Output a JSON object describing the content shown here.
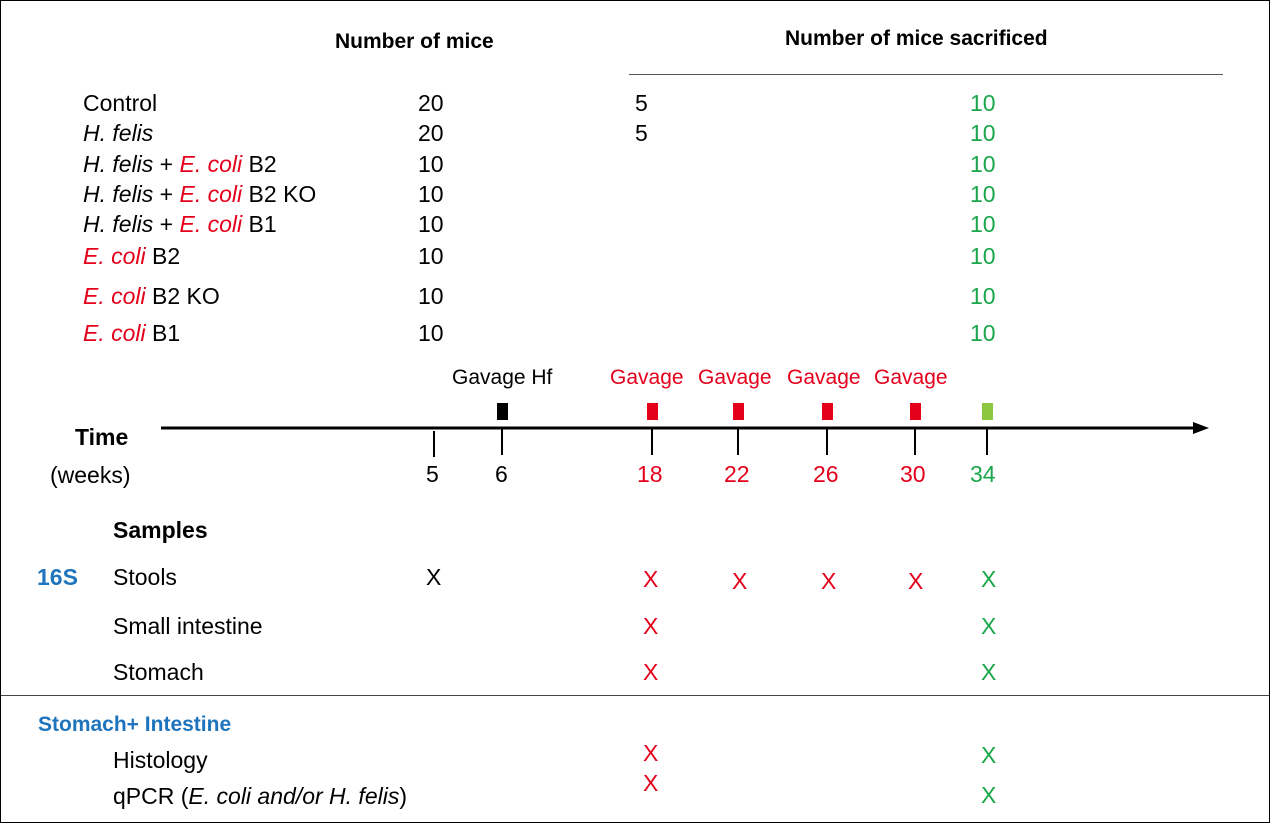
{
  "headers": {
    "mice": "Number of mice",
    "sacrificed": "Number of mice sacrificed"
  },
  "groups": [
    {
      "parts": [
        {
          "t": "Control",
          "s": "plain"
        }
      ],
      "n": "20",
      "sac_early": "5",
      "sac_final": "10"
    },
    {
      "parts": [
        {
          "t": "H. felis",
          "s": "italic"
        }
      ],
      "n": "20",
      "sac_early": "5",
      "sac_final": "10"
    },
    {
      "parts": [
        {
          "t": "H. felis",
          "s": "italic"
        },
        {
          "t": " + ",
          "s": "plain"
        },
        {
          "t": "E. coli",
          "s": "red-italic"
        },
        {
          "t": " B2",
          "s": "plain"
        }
      ],
      "n": "10",
      "sac_early": "",
      "sac_final": "10"
    },
    {
      "parts": [
        {
          "t": "H. felis",
          "s": "italic"
        },
        {
          "t": " + ",
          "s": "plain"
        },
        {
          "t": "E. coli",
          "s": "red-italic"
        },
        {
          "t": " B2 KO",
          "s": "plain"
        }
      ],
      "n": "10",
      "sac_early": "",
      "sac_final": "10"
    },
    {
      "parts": [
        {
          "t": "H. felis",
          "s": "italic"
        },
        {
          "t": " + ",
          "s": "plain"
        },
        {
          "t": "E. coli",
          "s": "red-italic"
        },
        {
          "t": " B1",
          "s": "plain"
        }
      ],
      "n": "10",
      "sac_early": "",
      "sac_final": "10"
    },
    {
      "parts": [
        {
          "t": "E. coli",
          "s": "red-italic"
        },
        {
          "t": " B2",
          "s": "plain"
        }
      ],
      "n": "10",
      "sac_early": "",
      "sac_final": "10"
    },
    {
      "parts": [
        {
          "t": "E. coli",
          "s": "red-italic"
        },
        {
          "t": " B2 KO",
          "s": "plain"
        }
      ],
      "n": "10",
      "sac_early": "",
      "sac_final": "10"
    },
    {
      "parts": [
        {
          "t": "E. coli",
          "s": "red-italic"
        },
        {
          "t": " B1",
          "s": "plain"
        }
      ],
      "n": "10",
      "sac_early": "",
      "sac_final": "10"
    }
  ],
  "timeline": {
    "axis_label": "Time",
    "axis_unit": "(weeks)",
    "gavage_hf_label": "Gavage Hf",
    "gavage_label": "Gavage",
    "weeks": [
      {
        "label": "5",
        "color": "black",
        "marker": "none"
      },
      {
        "label": "6",
        "color": "black",
        "marker": "black"
      },
      {
        "label": "18",
        "color": "red",
        "marker": "red"
      },
      {
        "label": "22",
        "color": "red",
        "marker": "red"
      },
      {
        "label": "26",
        "color": "red",
        "marker": "red"
      },
      {
        "label": "30",
        "color": "red",
        "marker": "red"
      },
      {
        "label": "34",
        "color": "green",
        "marker": "green"
      }
    ]
  },
  "samples": {
    "title": "Samples",
    "tag_16s": "16S",
    "stools": "Stools",
    "small_intestine": "Small intestine",
    "stomach": "Stomach",
    "section2_title": "Stomach+ Intestine",
    "histology": "Histology",
    "qpcr_prefix": "qPCR (",
    "qpcr_ecoli": "E. coli",
    "qpcr_mid": " and/or ",
    "qpcr_hfelis": "H. felis",
    "qpcr_suffix": ")",
    "mark": "X"
  },
  "colors": {
    "red": "#e4001b",
    "green": "#1aa64a",
    "blue": "#1f75bd",
    "black": "#000000"
  }
}
